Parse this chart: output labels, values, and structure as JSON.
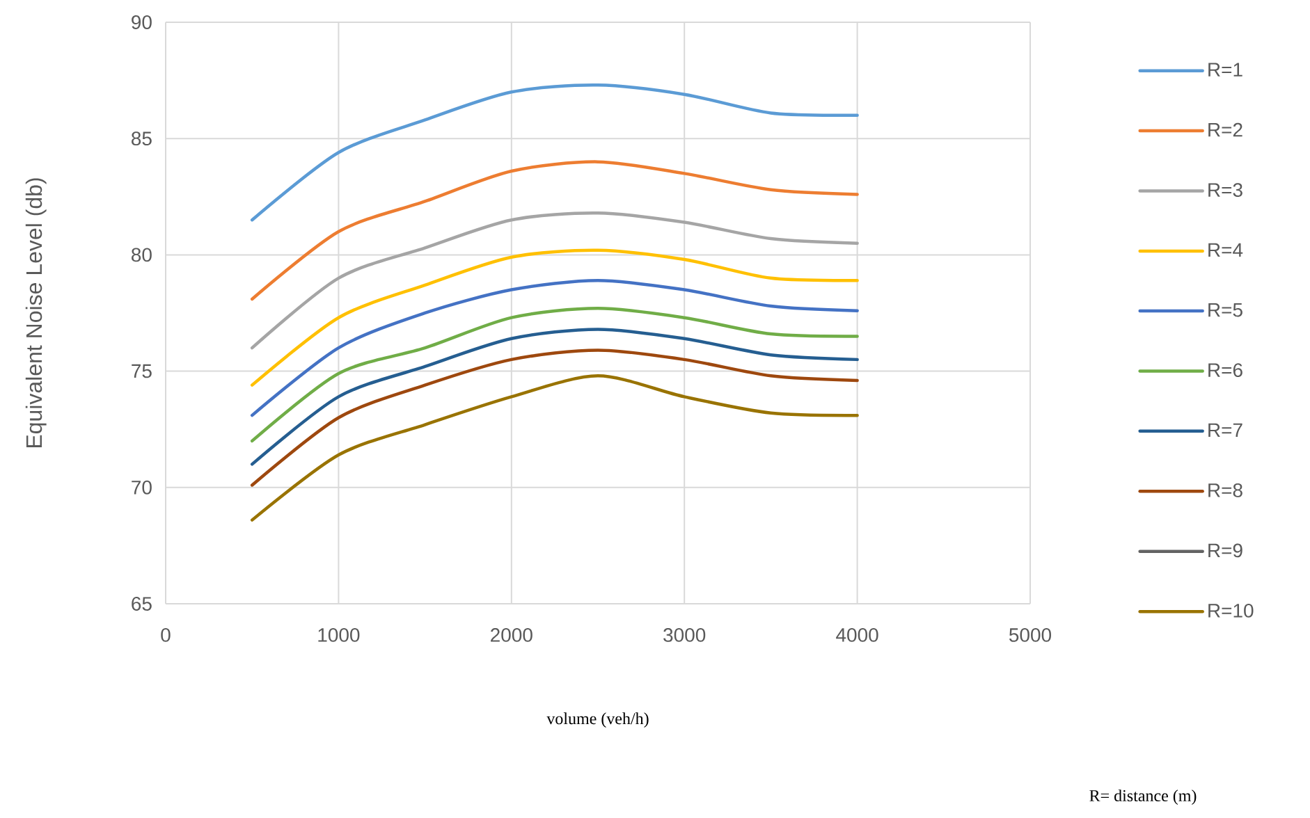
{
  "chart_data": {
    "type": "line",
    "xlabel": "volume (veh/h)",
    "ylabel": "Equivalent Noise Level (db)",
    "x": [
      500,
      1000,
      1500,
      2000,
      2500,
      3000,
      3500,
      4000
    ],
    "series": [
      {
        "name": "R=1",
        "color": "#5b9bd5",
        "values": [
          81.5,
          84.4,
          85.8,
          87.0,
          87.3,
          86.9,
          86.1,
          86.0
        ]
      },
      {
        "name": "R=2",
        "color": "#ed7d31",
        "values": [
          78.1,
          81.0,
          82.3,
          83.6,
          84.0,
          83.5,
          82.8,
          82.6
        ]
      },
      {
        "name": "R=3",
        "color": "#a5a5a5",
        "values": [
          76.0,
          79.0,
          80.3,
          81.5,
          81.8,
          81.4,
          80.7,
          80.5
        ]
      },
      {
        "name": "R=4",
        "color": "#ffc000",
        "values": [
          74.4,
          77.3,
          78.7,
          79.9,
          80.2,
          79.8,
          79.0,
          78.9
        ]
      },
      {
        "name": "R=5",
        "color": "#4472c4",
        "values": [
          73.1,
          76.0,
          77.5,
          78.5,
          78.9,
          78.5,
          77.8,
          77.6
        ]
      },
      {
        "name": "R=6",
        "color": "#70ad47",
        "values": [
          72.0,
          74.9,
          76.0,
          77.3,
          77.7,
          77.3,
          76.6,
          76.5
        ]
      },
      {
        "name": "R=7",
        "color": "#255e91",
        "values": [
          71.0,
          73.9,
          75.2,
          76.4,
          76.8,
          76.4,
          75.7,
          75.5
        ]
      },
      {
        "name": "R=8",
        "color": "#9e480e",
        "values": [
          70.1,
          73.0,
          74.4,
          75.5,
          75.9,
          75.5,
          74.8,
          74.6
        ]
      },
      {
        "name": "R=9",
        "color": "#636363",
        "values": [
          null,
          null,
          null,
          null,
          null,
          null,
          null,
          null
        ]
      },
      {
        "name": "R=10",
        "color": "#997300",
        "values": [
          68.6,
          71.4,
          72.7,
          73.9,
          74.8,
          73.9,
          73.2,
          73.1
        ]
      }
    ],
    "xlim": [
      0,
      5000
    ],
    "xticks": [
      0,
      1000,
      2000,
      3000,
      4000,
      5000
    ],
    "ylim": [
      65,
      90
    ],
    "yticks": [
      65,
      70,
      75,
      80,
      85,
      90
    ],
    "grid": true,
    "legend": "right",
    "marker": "none",
    "line_style": "solid",
    "annotations": [
      "R= distance (m)"
    ]
  }
}
